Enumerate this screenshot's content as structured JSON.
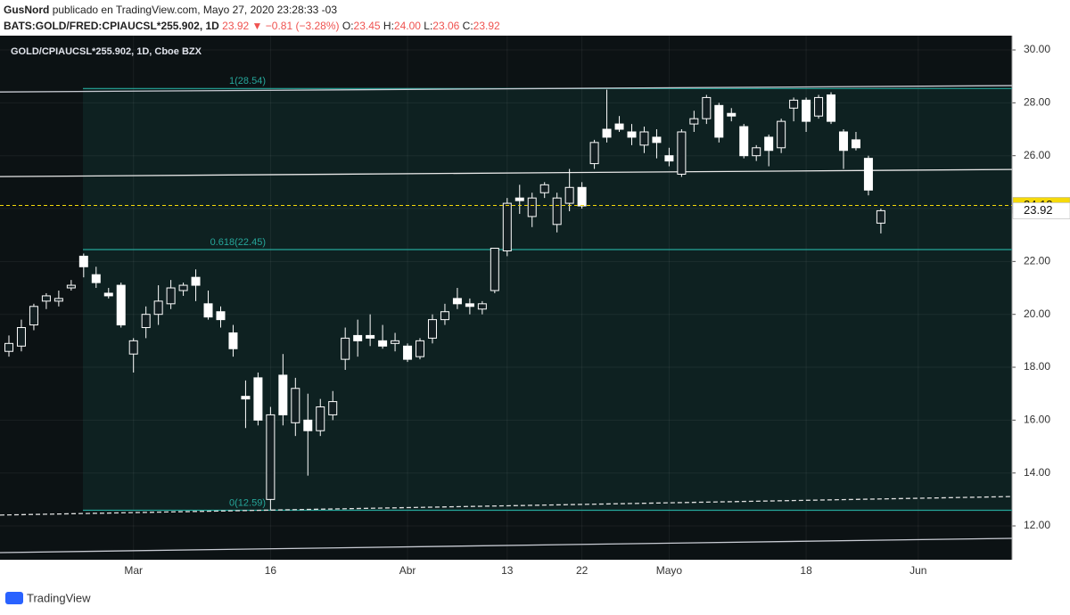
{
  "header": {
    "author": "GusNord",
    "published": "publicado en TradingView.com, Mayo 27, 2020 23:28:33 -03",
    "symbol": "BATS:GOLD/FRED:CPIAUCSL*255.902, 1D",
    "last": "23.92",
    "change": "−0.81 (−3.28%)",
    "ohlc": [
      {
        "label": "O:",
        "value": "23.45"
      },
      {
        "label": "H:",
        "value": "24.00"
      },
      {
        "label": "L:",
        "value": "23.06"
      },
      {
        "label": "C:",
        "value": "23.92"
      }
    ]
  },
  "chart_data": {
    "type": "candlestick",
    "title": "GOLD/CPIAUCSL*255.902, 1D, Cboe BZX",
    "categories": [
      null,
      null,
      null,
      null,
      null,
      null,
      null,
      null,
      null,
      null,
      "Mar",
      null,
      null,
      null,
      null,
      null,
      null,
      null,
      null,
      null,
      null,
      "16",
      null,
      null,
      null,
      null,
      null,
      null,
      null,
      null,
      null,
      null,
      "Abr",
      null,
      null,
      null,
      null,
      null,
      null,
      null,
      "13",
      null,
      null,
      null,
      null,
      null,
      "22",
      null,
      null,
      null,
      null,
      null,
      null,
      "Mayo",
      null,
      null,
      null,
      null,
      null,
      null,
      null,
      null,
      null,
      null,
      "18",
      null,
      null,
      null,
      null,
      null,
      null,
      null,
      null,
      "Jun",
      null,
      null,
      null,
      null,
      null,
      null,
      null
    ],
    "open": [
      18.6,
      18.8,
      19.6,
      20.5,
      20.5,
      21.0,
      22.2,
      21.5,
      20.8,
      21.1,
      18.5,
      19.5,
      20.0,
      20.4,
      20.9,
      21.4,
      20.4,
      20.1,
      19.3,
      16.9,
      17.6,
      13.0,
      17.7,
      15.9,
      16.0,
      15.6,
      16.2,
      18.3,
      19.2,
      19.2,
      19.0,
      18.9,
      18.8,
      18.4,
      19.1,
      19.8,
      20.6,
      20.4,
      20.2,
      20.9,
      22.4,
      24.4,
      23.7,
      24.6,
      23.4,
      24.2,
      24.8,
      25.7,
      27.0,
      27.2,
      26.9,
      26.4,
      26.7,
      26.0,
      25.3,
      27.2,
      27.4,
      27.9,
      27.6,
      27.1,
      26.0,
      26.7,
      26.3,
      27.8,
      28.1,
      27.5,
      28.3,
      26.9,
      26.6,
      25.9,
      23.45,
      null,
      null,
      null,
      null,
      null,
      null,
      null,
      null,
      null,
      null
    ],
    "high": [
      19.2,
      19.8,
      20.4,
      20.8,
      20.9,
      21.3,
      22.3,
      21.8,
      21.0,
      21.2,
      19.1,
      20.3,
      21.1,
      21.3,
      21.2,
      21.7,
      20.9,
      20.3,
      19.6,
      17.5,
      17.8,
      16.5,
      18.5,
      17.6,
      17.0,
      16.8,
      17.1,
      19.5,
      19.8,
      20.0,
      19.6,
      19.3,
      18.9,
      19.1,
      20.0,
      20.4,
      21.0,
      20.6,
      20.5,
      22.5,
      24.4,
      24.9,
      24.6,
      25.0,
      24.6,
      25.5,
      25.0,
      26.6,
      28.5,
      27.5,
      27.2,
      27.1,
      27.0,
      26.3,
      27.0,
      27.7,
      28.3,
      28.0,
      27.8,
      27.2,
      26.4,
      26.8,
      27.4,
      28.2,
      28.2,
      28.3,
      28.4,
      27.0,
      26.9,
      26.0,
      24.0,
      null,
      null,
      null,
      null,
      null,
      null,
      null,
      null,
      null,
      null
    ],
    "low": [
      18.4,
      18.6,
      19.4,
      20.2,
      20.3,
      20.9,
      21.4,
      21.0,
      20.6,
      19.5,
      17.8,
      19.1,
      19.6,
      20.2,
      20.7,
      20.5,
      19.8,
      19.5,
      18.4,
      15.7,
      15.8,
      12.59,
      15.8,
      15.4,
      13.9,
      15.4,
      16.0,
      17.9,
      18.4,
      18.8,
      18.7,
      18.6,
      18.2,
      18.3,
      18.9,
      19.6,
      20.2,
      20.0,
      20.0,
      20.8,
      22.2,
      23.8,
      23.3,
      24.4,
      23.1,
      23.9,
      24.0,
      25.5,
      26.5,
      26.9,
      26.4,
      26.1,
      25.9,
      25.6,
      25.2,
      26.9,
      27.2,
      26.5,
      27.3,
      25.9,
      25.8,
      25.6,
      26.1,
      27.3,
      26.9,
      27.4,
      27.2,
      25.5,
      26.2,
      24.5,
      23.06,
      null,
      null,
      null,
      null,
      null,
      null,
      null,
      null,
      null,
      null
    ],
    "close": [
      18.9,
      19.5,
      20.3,
      20.7,
      20.6,
      21.1,
      21.8,
      21.2,
      20.7,
      19.6,
      19.0,
      20.0,
      20.5,
      21.0,
      21.1,
      21.1,
      19.9,
      19.8,
      18.7,
      16.8,
      16.0,
      16.2,
      16.2,
      17.2,
      15.6,
      16.5,
      16.7,
      19.1,
      19.0,
      19.1,
      18.8,
      19.0,
      18.3,
      19.0,
      19.8,
      20.1,
      20.4,
      20.3,
      20.4,
      22.5,
      24.2,
      24.3,
      24.4,
      24.9,
      24.4,
      24.8,
      24.1,
      26.5,
      26.7,
      27.0,
      26.7,
      26.9,
      26.5,
      25.8,
      26.9,
      27.4,
      28.2,
      26.7,
      27.5,
      26.0,
      26.3,
      26.2,
      27.3,
      28.1,
      27.3,
      28.2,
      27.3,
      26.2,
      26.3,
      24.7,
      23.92,
      null,
      null,
      null,
      null,
      null,
      null,
      null,
      null,
      null,
      null
    ],
    "up_color": "#131f22",
    "down_color": "#ffffff",
    "wick_color": "#ffffff",
    "ylim": [
      10.72,
      30.54
    ],
    "yticks": [
      {
        "value": 12,
        "label": "12.00"
      },
      {
        "value": 14,
        "label": "14.00"
      },
      {
        "value": 16,
        "label": "16.00"
      },
      {
        "value": 18,
        "label": "18.00"
      },
      {
        "value": 20,
        "label": "20.00"
      },
      {
        "value": 22,
        "label": "22.00"
      },
      {
        "value": 24,
        "label": "24.00"
      },
      {
        "value": 26,
        "label": "26.00"
      },
      {
        "value": 28,
        "label": "28.00"
      },
      {
        "value": 30,
        "label": "30.00"
      }
    ],
    "grid": true,
    "fib": {
      "color": "#26a69a",
      "levels": [
        {
          "value": 28.54,
          "label": "1(28.54)"
        },
        {
          "value": 22.45,
          "label": "0.618(22.45)"
        },
        {
          "value": 12.59,
          "label": "0(12.59)"
        }
      ]
    },
    "trendlines": [
      {
        "values": [
          28.41,
          28.65
        ],
        "color": "#c8cbd3",
        "dashed": false
      },
      {
        "values": [
          25.21,
          25.48
        ],
        "color": "#e8e8e8",
        "dashed": false
      },
      {
        "values": [
          12.41,
          13.11
        ],
        "color": "#e0e0e0",
        "dashed": true
      },
      {
        "values": [
          10.99,
          11.53
        ],
        "color": "#c8cbd3",
        "dashed": false
      }
    ],
    "price_lines": [
      {
        "value": 24.12,
        "color": "#f5d90a",
        "dashed": true
      },
      {
        "value": 23.92,
        "color": "#ffffff",
        "dashed": false
      }
    ]
  },
  "footer": {
    "brand": "TradingView"
  }
}
